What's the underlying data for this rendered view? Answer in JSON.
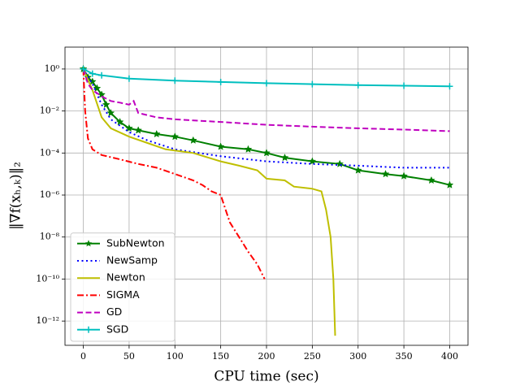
{
  "chart_data": {
    "type": "line",
    "x_label": "CPU time (sec)",
    "y_label": "‖∇f(xₕ,ₖ)‖₂",
    "log_y": true,
    "grid": true,
    "legend": "lower left",
    "xlim": [
      -20,
      420
    ],
    "xticks": [
      0,
      50,
      100,
      150,
      200,
      250,
      300,
      350,
      400
    ],
    "ylim": [
      7e-14,
      11
    ],
    "yticks": [
      {
        "value": 1,
        "label": "10⁰"
      },
      {
        "value": 0.01,
        "label": "10⁻²"
      },
      {
        "value": 0.0001,
        "label": "10⁻⁴"
      },
      {
        "value": 1e-06,
        "label": "10⁻⁶"
      },
      {
        "value": 1e-08,
        "label": "10⁻⁸"
      },
      {
        "value": 1e-10,
        "label": "10⁻¹⁰"
      },
      {
        "value": 1e-12,
        "label": "10⁻¹²"
      }
    ],
    "series": [
      {
        "name": "SubNewton",
        "color": "#008000",
        "linestyle": "solid",
        "marker": "star",
        "x": [
          0,
          5,
          10,
          15,
          20,
          25,
          30,
          40,
          50,
          60,
          80,
          100,
          120,
          150,
          180,
          200,
          220,
          250,
          280,
          300,
          330,
          350,
          380,
          400
        ],
        "values": [
          1,
          0.4,
          0.25,
          0.12,
          0.06,
          0.02,
          0.008,
          0.003,
          0.0015,
          0.0012,
          0.0008,
          0.0006,
          0.0004,
          0.0002,
          0.00015,
          0.0001,
          6e-05,
          4e-05,
          3e-05,
          1.5e-05,
          1e-05,
          8e-06,
          5e-06,
          3e-06
        ]
      },
      {
        "name": "NewSamp",
        "color": "#0000ff",
        "linestyle": "dotted",
        "marker": "none",
        "x": [
          0,
          10,
          20,
          30,
          50,
          70,
          100,
          150,
          200,
          250,
          300,
          350,
          400
        ],
        "values": [
          1,
          0.2,
          0.02,
          0.004,
          0.001,
          0.0004,
          0.00015,
          7e-05,
          4e-05,
          3e-05,
          2.5e-05,
          2e-05,
          2e-05
        ]
      },
      {
        "name": "Newton",
        "color": "#bfbf00",
        "linestyle": "solid",
        "marker": "none",
        "x": [
          0,
          10,
          20,
          30,
          50,
          70,
          90,
          120,
          150,
          170,
          190,
          200,
          220,
          230,
          250,
          260,
          265,
          270,
          273,
          275
        ],
        "values": [
          1,
          0.1,
          0.005,
          0.0015,
          0.0006,
          0.0003,
          0.00015,
          0.0001,
          4e-05,
          2.5e-05,
          1.5e-05,
          6e-06,
          5e-06,
          2.5e-06,
          2e-06,
          1.5e-06,
          2e-07,
          1e-08,
          1e-10,
          2e-13
        ]
      },
      {
        "name": "SIGMA",
        "color": "#ff0000",
        "linestyle": "dashdot",
        "marker": "none",
        "x": [
          0,
          2,
          5,
          10,
          20,
          40,
          60,
          80,
          100,
          120,
          130,
          140,
          150,
          160,
          170,
          180,
          190,
          198
        ],
        "values": [
          1,
          0.01,
          0.0005,
          0.00015,
          8e-05,
          5e-05,
          3e-05,
          2e-05,
          1e-05,
          5e-06,
          3e-06,
          1.5e-06,
          1e-06,
          5e-08,
          1e-08,
          2e-09,
          5e-10,
          1e-10
        ]
      },
      {
        "name": "GD",
        "color": "#bf00bf",
        "linestyle": "dashed",
        "marker": "none",
        "x": [
          0,
          5,
          10,
          20,
          30,
          40,
          50,
          55,
          60,
          80,
          100,
          150,
          200,
          250,
          300,
          350,
          400
        ],
        "values": [
          1,
          0.2,
          0.1,
          0.05,
          0.03,
          0.025,
          0.02,
          0.03,
          0.008,
          0.005,
          0.004,
          0.003,
          0.0022,
          0.0018,
          0.0015,
          0.0013,
          0.0011
        ]
      },
      {
        "name": "SGD",
        "color": "#00bfbf",
        "linestyle": "solid",
        "marker": "plus",
        "x": [
          0,
          10,
          20,
          50,
          100,
          150,
          200,
          250,
          300,
          350,
          400
        ],
        "values": [
          1,
          0.6,
          0.5,
          0.35,
          0.28,
          0.24,
          0.21,
          0.19,
          0.17,
          0.16,
          0.15
        ]
      }
    ]
  }
}
